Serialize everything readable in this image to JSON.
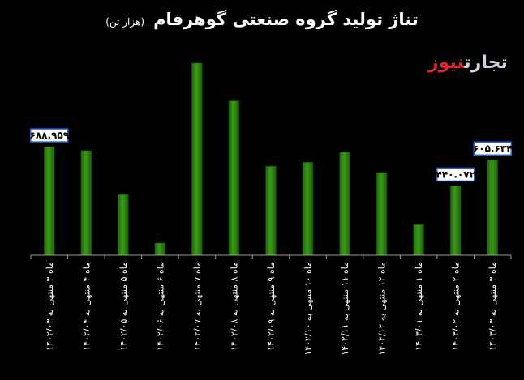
{
  "title": "تناژ تولید گروه صنعتی گوهرفام",
  "subtitle": "(هزار تن)",
  "logo": {
    "part1": "تجارت",
    "part2": "نیوز",
    "color1": "#cfd3de",
    "color2": "#e0262b"
  },
  "chart_data": {
    "type": "bar",
    "categories": [
      "ماه ۳ منتهی به ۱۴۰۲/۰۳",
      "ماه ۴ منتهی به ۱۴۰۲/۰۴",
      "ماه ۵ منتهی به ۱۴۰۲/۰۵",
      "ماه ۶ منتهی به ۱۴۰۲/۰۶",
      "ماه ۷ منتهی به ۱۴۰۲/۰۷",
      "ماه ۸ منتهی به ۱۴۰۲/۰۸",
      "ماه ۹ منتهی به ۱۴۰۲/۰۹",
      "ماه ۱۰ منتهی به ۱۴۰۲/۱۰",
      "ماه ۱۱ منتهی به ۱۴۰۲/۱۱",
      "ماه ۱۲ منتهی به ۱۴۰۲/۱۲",
      "ماه ۱ منتهی به ۱۴۰۳/۰۱",
      "ماه ۲ منتهی به ۱۴۰۳/۰۲",
      "ماه ۳ منتهی به ۱۴۰۳/۰۳"
    ],
    "values": [
      688.959,
      665,
      385,
      78,
      1220,
      980,
      565,
      590,
      655,
      525,
      195,
      440.072,
      605.634
    ],
    "data_labels": [
      {
        "index": 0,
        "text": "۶۸۸.۹۵۹"
      },
      {
        "index": 11,
        "text": "۴۴۰.۰۷۲"
      },
      {
        "index": 12,
        "text": "۶۰۵.۶۳۴"
      }
    ],
    "ylim": [
      0,
      1250
    ],
    "bar_color": "#2f8a13",
    "grid": false
  }
}
